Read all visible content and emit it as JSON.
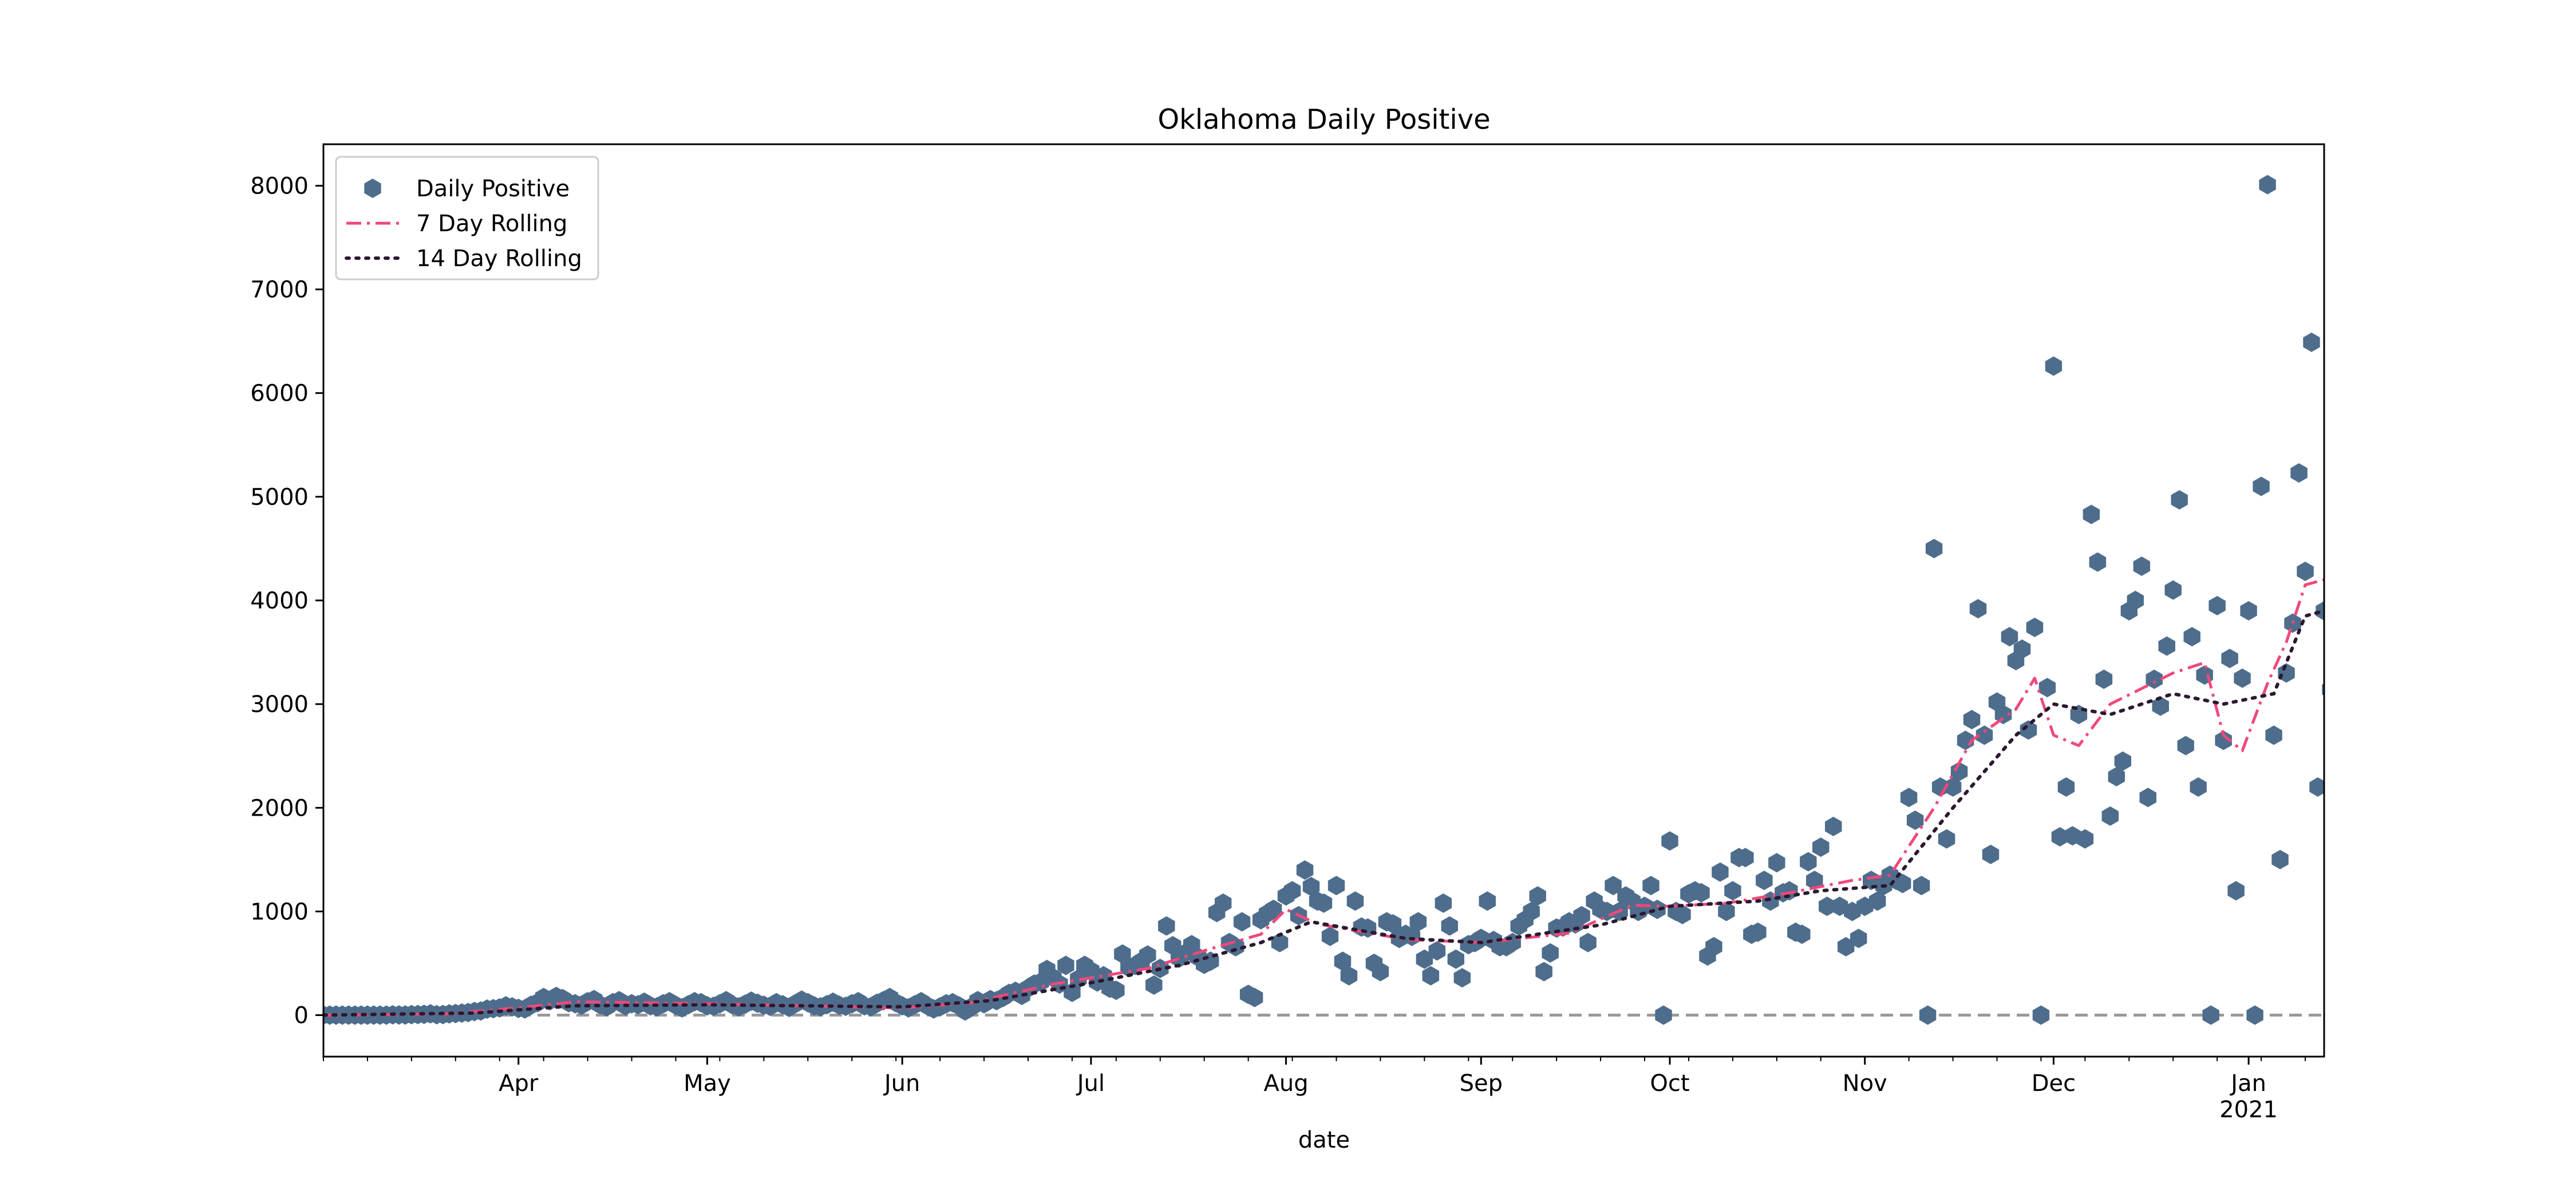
{
  "chart_data": {
    "type": "scatter",
    "title": "Oklahoma Daily Positive",
    "xlabel": "date",
    "ylabel": "",
    "x_range": [
      "2020-03-01",
      "2021-01-13"
    ],
    "ylim": [
      -400,
      8400
    ],
    "yticks": [
      0,
      1000,
      2000,
      3000,
      4000,
      5000,
      6000,
      7000,
      8000
    ],
    "xticks": [
      {
        "date": "2020-04-01",
        "label": "Apr",
        "sub": ""
      },
      {
        "date": "2020-05-01",
        "label": "May",
        "sub": ""
      },
      {
        "date": "2020-06-01",
        "label": "Jun",
        "sub": ""
      },
      {
        "date": "2020-07-01",
        "label": "Jul",
        "sub": ""
      },
      {
        "date": "2020-08-01",
        "label": "Aug",
        "sub": ""
      },
      {
        "date": "2020-09-01",
        "label": "Sep",
        "sub": ""
      },
      {
        "date": "2020-10-01",
        "label": "Oct",
        "sub": ""
      },
      {
        "date": "2020-11-01",
        "label": "Nov",
        "sub": ""
      },
      {
        "date": "2020-12-01",
        "label": "Dec",
        "sub": ""
      },
      {
        "date": "2021-01-01",
        "label": "Jan",
        "sub": "2021"
      }
    ],
    "legend": {
      "position": "upper-left",
      "entries": [
        "Daily Positive",
        "7 Day Rolling",
        "14 Day Rolling"
      ]
    },
    "grid": false,
    "zero_line": {
      "value": 0,
      "style": "dashed",
      "color": "#999999"
    },
    "colors": {
      "points": "#4e6d8c",
      "rolling7": "#f0487a",
      "rolling14": "#2c1830"
    },
    "series": [
      {
        "name": "Daily Positive",
        "start": "2020-03-01",
        "values": [
          0,
          0,
          0,
          0,
          0,
          0,
          0,
          0,
          0,
          0,
          0,
          3,
          2,
          2,
          5,
          6,
          8,
          13,
          4,
          6,
          12,
          15,
          20,
          25,
          35,
          40,
          58,
          62,
          70,
          90,
          80,
          65,
          60,
          95,
          120,
          170,
          140,
          180,
          160,
          120,
          110,
          95,
          130,
          150,
          100,
          80,
          120,
          140,
          90,
          110,
          100,
          125,
          90,
          80,
          110,
          130,
          95,
          70,
          100,
          130,
          120,
          90,
          85,
          110,
          140,
          100,
          80,
          105,
          135,
          115,
          95,
          85,
          120,
          100,
          75,
          110,
          145,
          120,
          90,
          80,
          100,
          125,
          95,
          85,
          110,
          130,
          90,
          80,
          115,
          140,
          170,
          120,
          90,
          70,
          100,
          130,
          90,
          60,
          80,
          110,
          120,
          90,
          40,
          80,
          140,
          110,
          150,
          140,
          170,
          210,
          230,
          190,
          260,
          300,
          320,
          440,
          360,
          300,
          480,
          220,
          350,
          480,
          430,
          320,
          380,
          260,
          240,
          590,
          460,
          480,
          520,
          580,
          290,
          450,
          860,
          670,
          550,
          600,
          680,
          560,
          490,
          520,
          990,
          1080,
          700,
          660,
          900,
          200,
          170,
          920,
          980,
          1020,
          700,
          1150,
          1200,
          960,
          1400,
          1240,
          1100,
          1080,
          760,
          1250,
          520,
          380,
          1100,
          850,
          840,
          500,
          420,
          900,
          880,
          740,
          780,
          760,
          900,
          540,
          380,
          620,
          1080,
          860,
          540,
          360,
          680,
          700,
          740,
          1100,
          720,
          660,
          660,
          700,
          860,
          920,
          1000,
          1150,
          420,
          600,
          840,
          850,
          900,
          880,
          960,
          700,
          1100,
          1020,
          1000,
          1250,
          1000,
          1150,
          1100,
          1000,
          1050,
          1250,
          1020,
          0,
          1680,
          1000,
          970,
          1170,
          1200,
          1180,
          570,
          660,
          1380,
          1000,
          1200,
          1520,
          1520,
          780,
          800,
          1300,
          1100,
          1470,
          1180,
          1200,
          800,
          780,
          1480,
          1300,
          1620,
          1050,
          1820,
          1050,
          660,
          1000,
          740,
          1050,
          1300,
          1100,
          1250,
          1350,
          1300,
          1270,
          2100,
          1880,
          1250,
          0,
          4500,
          2200,
          1700,
          2200,
          2350,
          2650,
          2850,
          3920,
          2700,
          1550,
          3020,
          2900,
          3650,
          3420,
          3530,
          2750,
          3740,
          0,
          3160,
          6260,
          1720,
          2200,
          1730,
          2900,
          1700,
          4830,
          4370,
          3240,
          1920,
          2300,
          2450,
          3900,
          4000,
          4330,
          2100,
          3240,
          2980,
          3560,
          4100,
          4970,
          2600,
          3650,
          2200,
          3280,
          0,
          3950,
          2650,
          3440,
          1200,
          3250,
          3900,
          0,
          5100,
          8010,
          2700,
          1500,
          3300,
          3780,
          5230,
          4280,
          6490,
          2200,
          3900,
          3140
        ]
      },
      {
        "name": "7 Day Rolling",
        "knots": [
          [
            "2020-03-01",
            0
          ],
          [
            "2020-03-20",
            10
          ],
          [
            "2020-04-01",
            70
          ],
          [
            "2020-04-10",
            130
          ],
          [
            "2020-05-01",
            110
          ],
          [
            "2020-06-01",
            70
          ],
          [
            "2020-06-12",
            120
          ],
          [
            "2020-06-25",
            300
          ],
          [
            "2020-07-10",
            450
          ],
          [
            "2020-07-20",
            640
          ],
          [
            "2020-07-28",
            780
          ],
          [
            "2020-08-01",
            1020
          ],
          [
            "2020-08-06",
            880
          ],
          [
            "2020-08-20",
            730
          ],
          [
            "2020-09-01",
            700
          ],
          [
            "2020-09-15",
            790
          ],
          [
            "2020-09-25",
            1060
          ],
          [
            "2020-10-01",
            1050
          ],
          [
            "2020-10-10",
            1080
          ],
          [
            "2020-10-20",
            1180
          ],
          [
            "2020-10-30",
            1300
          ],
          [
            "2020-11-05",
            1350
          ],
          [
            "2020-11-12",
            2000
          ],
          [
            "2020-11-18",
            2650
          ],
          [
            "2020-11-25",
            2950
          ],
          [
            "2020-11-28",
            3250
          ],
          [
            "2020-12-01",
            2700
          ],
          [
            "2020-12-05",
            2600
          ],
          [
            "2020-12-10",
            3000
          ],
          [
            "2020-12-20",
            3300
          ],
          [
            "2020-12-25",
            3400
          ],
          [
            "2020-12-28",
            2700
          ],
          [
            "2020-12-31",
            2550
          ],
          [
            "2021-01-04",
            3200
          ],
          [
            "2021-01-07",
            3600
          ],
          [
            "2021-01-10",
            4150
          ],
          [
            "2021-01-13",
            4200
          ]
        ]
      },
      {
        "name": "14 Day Rolling",
        "knots": [
          [
            "2020-03-01",
            0
          ],
          [
            "2020-03-25",
            20
          ],
          [
            "2020-04-10",
            90
          ],
          [
            "2020-05-01",
            100
          ],
          [
            "2020-06-01",
            80
          ],
          [
            "2020-06-15",
            140
          ],
          [
            "2020-06-30",
            300
          ],
          [
            "2020-07-15",
            480
          ],
          [
            "2020-07-28",
            700
          ],
          [
            "2020-08-05",
            900
          ],
          [
            "2020-08-20",
            740
          ],
          [
            "2020-09-01",
            700
          ],
          [
            "2020-09-20",
            870
          ],
          [
            "2020-10-01",
            1050
          ],
          [
            "2020-10-15",
            1100
          ],
          [
            "2020-10-25",
            1200
          ],
          [
            "2020-11-05",
            1250
          ],
          [
            "2020-11-15",
            2000
          ],
          [
            "2020-11-25",
            2700
          ],
          [
            "2020-12-01",
            3000
          ],
          [
            "2020-12-10",
            2900
          ],
          [
            "2020-12-20",
            3100
          ],
          [
            "2020-12-28",
            3000
          ],
          [
            "2021-01-05",
            3100
          ],
          [
            "2021-01-10",
            3850
          ],
          [
            "2021-01-13",
            3900
          ]
        ]
      }
    ]
  }
}
